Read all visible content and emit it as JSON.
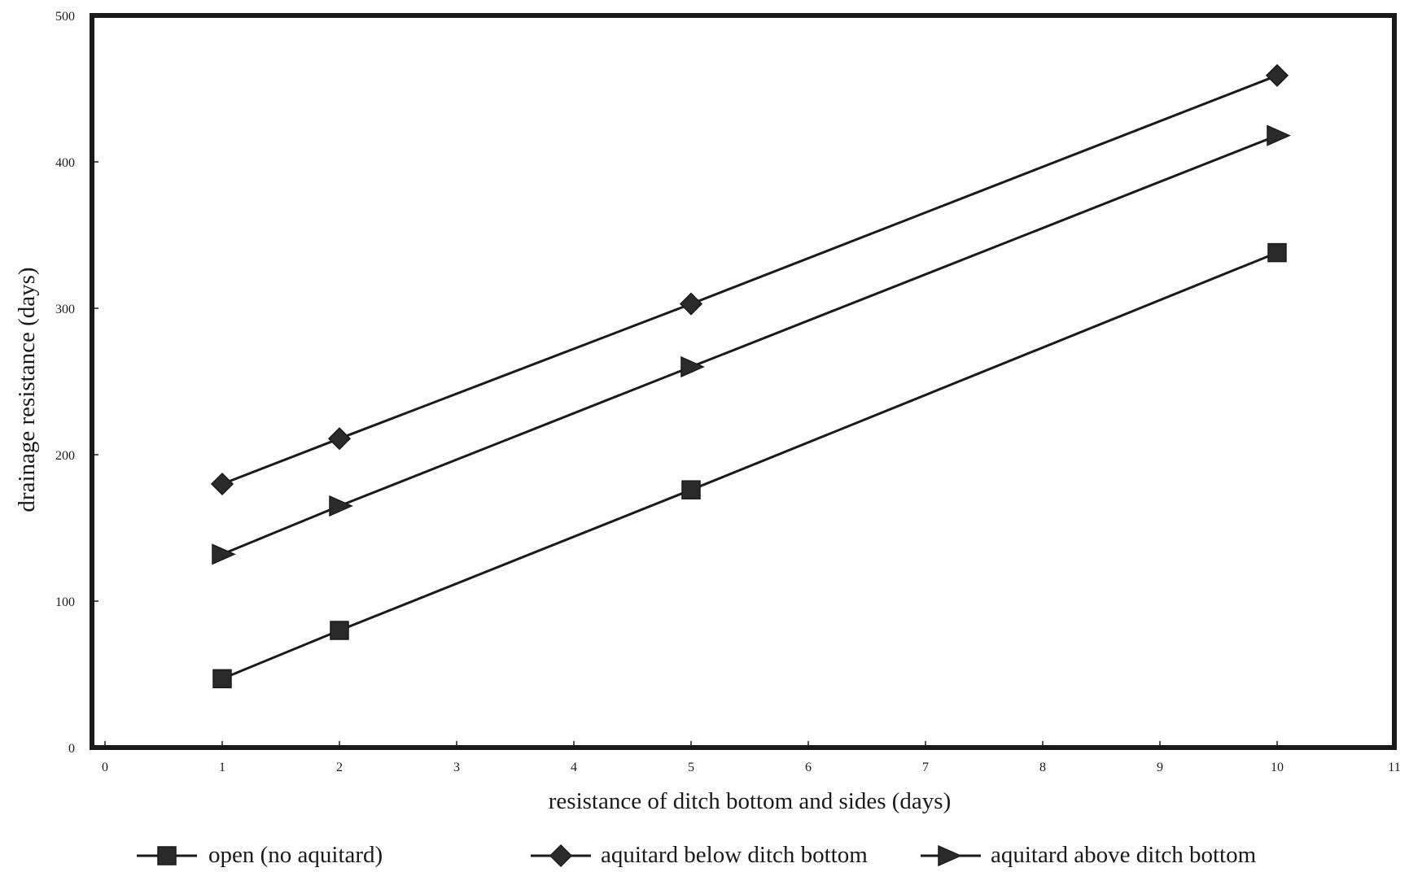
{
  "chart_data": {
    "type": "line",
    "title": "",
    "xlabel": "resistance of ditch bottom and sides (days)",
    "ylabel": "drainage resistance (days)",
    "xlim": [
      0,
      11
    ],
    "ylim": [
      0,
      500
    ],
    "xticks": [
      0,
      1,
      2,
      3,
      4,
      5,
      6,
      7,
      8,
      9,
      10,
      11
    ],
    "yticks": [
      0,
      100,
      200,
      300,
      400,
      500
    ],
    "grid": false,
    "legend_position": "bottom",
    "colors": {
      "line": "#1a1a1a",
      "marker": "#2a2a2a"
    },
    "series": [
      {
        "name": "open (no aquitard)",
        "marker": "square",
        "x": [
          1,
          2,
          5,
          10
        ],
        "y": [
          47,
          80,
          176,
          338
        ]
      },
      {
        "name": "aquitard below ditch bottom",
        "marker": "diamond",
        "x": [
          1,
          2,
          5,
          10
        ],
        "y": [
          180,
          211,
          303,
          459
        ]
      },
      {
        "name": "aquitard above ditch bottom",
        "marker": "triangle-right",
        "x": [
          1,
          2,
          5,
          10
        ],
        "y": [
          132,
          165,
          260,
          418
        ]
      }
    ]
  }
}
